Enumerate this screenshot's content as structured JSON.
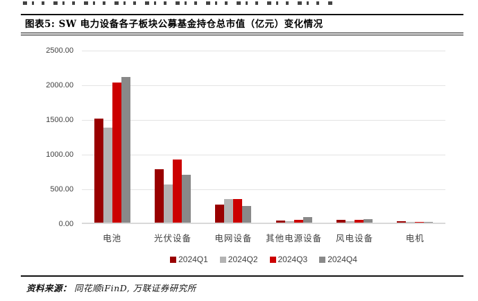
{
  "figure": {
    "title": "图表5: SW 电力设备各子板块公募基金持仓总市值（亿元）变化情况",
    "source_label": "资料来源：",
    "source_text": "同花顺iFinD, 万联证券研究所"
  },
  "chart_data": {
    "type": "bar",
    "title": "SW 电力设备各子板块公募基金持仓总市值（亿元）变化情况",
    "categories": [
      "电池",
      "光伏设备",
      "电网设备",
      "其他电源设备",
      "风电设备",
      "电机"
    ],
    "series": [
      {
        "name": "2024Q1",
        "color": "#990000",
        "values": [
          1500,
          770,
          265,
          30,
          40,
          20
        ]
      },
      {
        "name": "2024Q2",
        "color": "#B3B3B3",
        "values": [
          1375,
          550,
          345,
          20,
          20,
          8
        ]
      },
      {
        "name": "2024Q3",
        "color": "#CC0000",
        "values": [
          2025,
          910,
          340,
          45,
          40,
          8
        ]
      },
      {
        "name": "2024Q4",
        "color": "#898989",
        "values": [
          2100,
          690,
          245,
          80,
          55,
          12
        ]
      }
    ],
    "xlabel": "",
    "ylabel": "",
    "ylim": [
      0,
      2500
    ],
    "yticks": [
      2500,
      2000,
      1500,
      1000,
      500,
      0
    ],
    "ytick_labels": [
      "2500.00",
      "2000.00",
      "1500.00",
      "1000.00",
      "500.00",
      "0.00"
    ],
    "grid": true,
    "legend_position": "bottom",
    "unit": "亿元"
  }
}
